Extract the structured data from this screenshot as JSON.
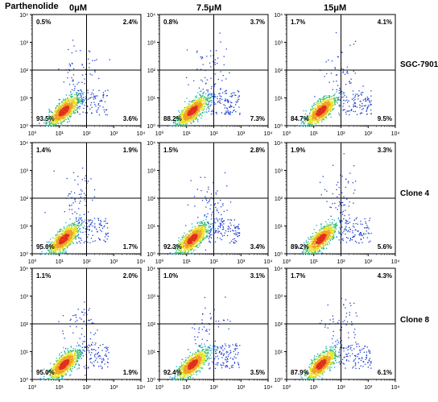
{
  "figure": {
    "treatment_label": "Parthenolide",
    "columns": [
      "0μM",
      "7.5μM",
      "15μM"
    ],
    "rows": [
      "SGC-7901",
      "Clone 4",
      "Clone 8"
    ]
  },
  "chart_data": {
    "type": "scatter",
    "grid": false,
    "xlim": [
      1,
      10000
    ],
    "ylim": [
      1,
      10000
    ],
    "xscale": "log",
    "yscale": "log",
    "tick_labels": [
      "10⁰",
      "10¹",
      "10²",
      "10³",
      "10⁴"
    ],
    "panels": [
      {
        "row": "SGC-7901",
        "col": "0μM",
        "quadrants": {
          "top_left": "0.5%",
          "top_right": "2.4%",
          "bottom_left": "93.5%",
          "bottom_right": "3.6%"
        },
        "gate": [
          100,
          100
        ]
      },
      {
        "row": "SGC-7901",
        "col": "7.5μM",
        "quadrants": {
          "top_left": "0.8%",
          "top_right": "3.7%",
          "bottom_left": "88.2%",
          "bottom_right": "7.3%"
        },
        "gate": [
          100,
          100
        ]
      },
      {
        "row": "SGC-7901",
        "col": "15μM",
        "quadrants": {
          "top_left": "1.7%",
          "top_right": "4.1%",
          "bottom_left": "84.7%",
          "bottom_right": "9.5%"
        },
        "gate": [
          100,
          100
        ]
      },
      {
        "row": "Clone 4",
        "col": "0μM",
        "quadrants": {
          "top_left": "1.4%",
          "top_right": "1.9%",
          "bottom_left": "95.0%",
          "bottom_right": "1.7%"
        },
        "gate": [
          100,
          100
        ]
      },
      {
        "row": "Clone 4",
        "col": "7.5μM",
        "quadrants": {
          "top_left": "1.5%",
          "top_right": "2.8%",
          "bottom_left": "92.3%",
          "bottom_right": "3.4%"
        },
        "gate": [
          100,
          100
        ]
      },
      {
        "row": "Clone 4",
        "col": "15μM",
        "quadrants": {
          "top_left": "1.9%",
          "top_right": "3.3%",
          "bottom_left": "89.2%",
          "bottom_right": "5.6%"
        },
        "gate": [
          100,
          100
        ]
      },
      {
        "row": "Clone 8",
        "col": "0μM",
        "quadrants": {
          "top_left": "1.1%",
          "top_right": "2.0%",
          "bottom_left": "95.0%",
          "bottom_right": "1.9%"
        },
        "gate": [
          100,
          100
        ]
      },
      {
        "row": "Clone 8",
        "col": "7.5μM",
        "quadrants": {
          "top_left": "1.0%",
          "top_right": "3.1%",
          "bottom_left": "92.4%",
          "bottom_right": "3.5%"
        },
        "gate": [
          100,
          100
        ]
      },
      {
        "row": "Clone 8",
        "col": "15μM",
        "quadrants": {
          "top_left": "1.7%",
          "top_right": "4.3%",
          "bottom_left": "87.9%",
          "bottom_right": "6.1%"
        },
        "gate": [
          100,
          100
        ]
      }
    ]
  }
}
